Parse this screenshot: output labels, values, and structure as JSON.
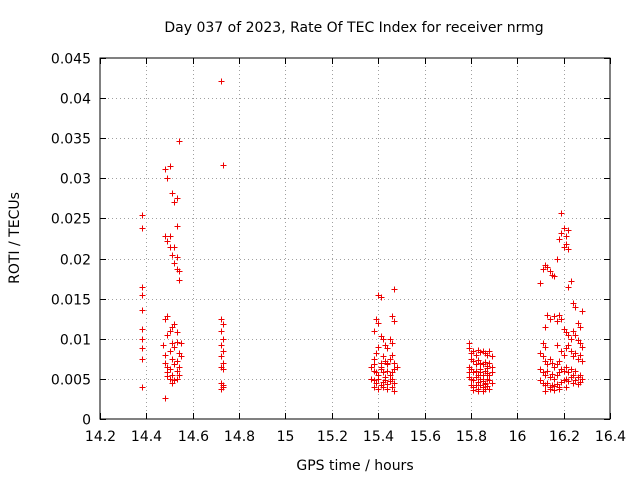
{
  "chart_data": {
    "type": "scatter",
    "title": "Day 037 of 2023, Rate Of TEC Index for receiver nrmg",
    "xlabel": "GPS time / hours",
    "ylabel": "ROTI / TECUs",
    "xlim": [
      14.2,
      16.4
    ],
    "ylim": [
      0,
      0.045
    ],
    "x_ticks": [
      14.2,
      14.4,
      14.6,
      14.8,
      15,
      15.2,
      15.4,
      15.6,
      15.8,
      16,
      16.2,
      16.4
    ],
    "x_tick_labels": [
      "14.2",
      "14.4",
      "14.6",
      "14.8",
      "15",
      "15.2",
      "15.4",
      "15.6",
      "15.8",
      "16",
      "16.2",
      "16.4"
    ],
    "y_ticks": [
      0,
      0.005,
      0.01,
      0.015,
      0.02,
      0.025,
      0.03,
      0.035,
      0.04,
      0.045
    ],
    "y_tick_labels": [
      "0",
      "0.005",
      "0.01",
      "0.015",
      "0.02",
      "0.025",
      "0.03",
      "0.035",
      "0.04",
      "0.045"
    ],
    "grid": true,
    "marker": "+",
    "color": "#ee0000",
    "series": [
      {
        "name": "ROTI",
        "points": [
          [
            14.38,
            0.0254
          ],
          [
            14.38,
            0.0238
          ],
          [
            14.38,
            0.0165
          ],
          [
            14.38,
            0.0155
          ],
          [
            14.38,
            0.0136
          ],
          [
            14.38,
            0.0112
          ],
          [
            14.38,
            0.01
          ],
          [
            14.38,
            0.0088
          ],
          [
            14.38,
            0.0075
          ],
          [
            14.38,
            0.004
          ],
          [
            14.48,
            0.0312
          ],
          [
            14.49,
            0.03
          ],
          [
            14.5,
            0.0315
          ],
          [
            14.51,
            0.0282
          ],
          [
            14.52,
            0.027
          ],
          [
            14.53,
            0.0275
          ],
          [
            14.53,
            0.024
          ],
          [
            14.54,
            0.0346
          ],
          [
            14.48,
            0.0228
          ],
          [
            14.49,
            0.0222
          ],
          [
            14.5,
            0.0215
          ],
          [
            14.51,
            0.0205
          ],
          [
            14.52,
            0.0215
          ],
          [
            14.53,
            0.0202
          ],
          [
            14.53,
            0.0187
          ],
          [
            14.54,
            0.0185
          ],
          [
            14.54,
            0.0173
          ],
          [
            14.5,
            0.0228
          ],
          [
            14.52,
            0.0195
          ],
          [
            14.48,
            0.0125
          ],
          [
            14.49,
            0.0128
          ],
          [
            14.5,
            0.011
          ],
          [
            14.51,
            0.0115
          ],
          [
            14.52,
            0.0118
          ],
          [
            14.53,
            0.0108
          ],
          [
            14.49,
            0.0105
          ],
          [
            14.47,
            0.0092
          ],
          [
            14.48,
            0.008
          ],
          [
            14.48,
            0.007
          ],
          [
            14.49,
            0.0065
          ],
          [
            14.49,
            0.0058
          ],
          [
            14.5,
            0.0062
          ],
          [
            14.5,
            0.0085
          ],
          [
            14.51,
            0.0075
          ],
          [
            14.51,
            0.0055
          ],
          [
            14.52,
            0.0068
          ],
          [
            14.52,
            0.009
          ],
          [
            14.53,
            0.0072
          ],
          [
            14.53,
            0.006
          ],
          [
            14.54,
            0.0082
          ],
          [
            14.54,
            0.0065
          ],
          [
            14.55,
            0.0095
          ],
          [
            14.55,
            0.0078
          ],
          [
            14.5,
            0.005
          ],
          [
            14.51,
            0.0045
          ],
          [
            14.52,
            0.0048
          ],
          [
            14.53,
            0.005
          ],
          [
            14.49,
            0.0053
          ],
          [
            14.54,
            0.0055
          ],
          [
            14.48,
            0.0026
          ],
          [
            14.53,
            0.0096
          ],
          [
            14.51,
            0.0095
          ],
          [
            14.72,
            0.0421
          ],
          [
            14.73,
            0.0316
          ],
          [
            14.72,
            0.0125
          ],
          [
            14.73,
            0.0118
          ],
          [
            14.72,
            0.011
          ],
          [
            14.73,
            0.01
          ],
          [
            14.72,
            0.0092
          ],
          [
            14.73,
            0.0085
          ],
          [
            14.72,
            0.0078
          ],
          [
            14.73,
            0.007
          ],
          [
            14.72,
            0.0065
          ],
          [
            14.73,
            0.0062
          ],
          [
            14.72,
            0.0045
          ],
          [
            14.73,
            0.004
          ],
          [
            14.72,
            0.0038
          ],
          [
            14.73,
            0.0043
          ],
          [
            15.4,
            0.0155
          ],
          [
            15.41,
            0.0152
          ],
          [
            15.39,
            0.0125
          ],
          [
            15.4,
            0.012
          ],
          [
            15.46,
            0.0128
          ],
          [
            15.47,
            0.0122
          ],
          [
            15.47,
            0.0162
          ],
          [
            15.45,
            0.01
          ],
          [
            15.46,
            0.0095
          ],
          [
            15.38,
            0.011
          ],
          [
            15.41,
            0.0103
          ],
          [
            15.42,
            0.01
          ],
          [
            15.43,
            0.0092
          ],
          [
            15.44,
            0.0088
          ],
          [
            15.4,
            0.009
          ],
          [
            15.38,
            0.0075
          ],
          [
            15.39,
            0.0082
          ],
          [
            15.41,
            0.007
          ],
          [
            15.42,
            0.0078
          ],
          [
            15.43,
            0.0072
          ],
          [
            15.44,
            0.0068
          ],
          [
            15.45,
            0.0075
          ],
          [
            15.46,
            0.008
          ],
          [
            15.47,
            0.007
          ],
          [
            15.37,
            0.0065
          ],
          [
            15.38,
            0.006
          ],
          [
            15.39,
            0.0058
          ],
          [
            15.4,
            0.0055
          ],
          [
            15.41,
            0.0062
          ],
          [
            15.42,
            0.0058
          ],
          [
            15.43,
            0.0052
          ],
          [
            15.44,
            0.006
          ],
          [
            15.45,
            0.0055
          ],
          [
            15.46,
            0.0058
          ],
          [
            15.47,
            0.0062
          ],
          [
            15.48,
            0.0065
          ],
          [
            15.37,
            0.005
          ],
          [
            15.38,
            0.0048
          ],
          [
            15.39,
            0.0045
          ],
          [
            15.4,
            0.005
          ],
          [
            15.41,
            0.0042
          ],
          [
            15.42,
            0.0046
          ],
          [
            15.43,
            0.0048
          ],
          [
            15.44,
            0.0044
          ],
          [
            15.45,
            0.0047
          ],
          [
            15.46,
            0.005
          ],
          [
            15.47,
            0.0045
          ],
          [
            15.38,
            0.004
          ],
          [
            15.4,
            0.0038
          ],
          [
            15.42,
            0.004
          ],
          [
            15.44,
            0.0038
          ],
          [
            15.46,
            0.004
          ],
          [
            15.47,
            0.0035
          ],
          [
            15.38,
            0.0068
          ],
          [
            15.41,
            0.0065
          ],
          [
            15.44,
            0.007
          ],
          [
            15.79,
            0.0095
          ],
          [
            15.79,
            0.0088
          ],
          [
            15.8,
            0.0082
          ],
          [
            15.81,
            0.0085
          ],
          [
            15.82,
            0.008
          ],
          [
            15.83,
            0.0086
          ],
          [
            15.84,
            0.0083
          ],
          [
            15.85,
            0.0085
          ],
          [
            15.86,
            0.0082
          ],
          [
            15.87,
            0.008
          ],
          [
            15.88,
            0.0085
          ],
          [
            15.89,
            0.0078
          ],
          [
            15.8,
            0.0075
          ],
          [
            15.81,
            0.0072
          ],
          [
            15.82,
            0.0068
          ],
          [
            15.83,
            0.0073
          ],
          [
            15.84,
            0.007
          ],
          [
            15.85,
            0.0068
          ],
          [
            15.86,
            0.0071
          ],
          [
            15.87,
            0.0066
          ],
          [
            15.88,
            0.007
          ],
          [
            15.89,
            0.0065
          ],
          [
            15.79,
            0.0065
          ],
          [
            15.8,
            0.0062
          ],
          [
            15.81,
            0.0058
          ],
          [
            15.82,
            0.006
          ],
          [
            15.83,
            0.0055
          ],
          [
            15.84,
            0.0058
          ],
          [
            15.85,
            0.0055
          ],
          [
            15.86,
            0.006
          ],
          [
            15.87,
            0.0057
          ],
          [
            15.88,
            0.0055
          ],
          [
            15.89,
            0.0058
          ],
          [
            15.79,
            0.0052
          ],
          [
            15.8,
            0.005
          ],
          [
            15.81,
            0.0048
          ],
          [
            15.82,
            0.0052
          ],
          [
            15.83,
            0.0046
          ],
          [
            15.84,
            0.005
          ],
          [
            15.85,
            0.0047
          ],
          [
            15.86,
            0.0045
          ],
          [
            15.87,
            0.005
          ],
          [
            15.88,
            0.0048
          ],
          [
            15.89,
            0.0045
          ],
          [
            15.8,
            0.0042
          ],
          [
            15.81,
            0.004
          ],
          [
            15.82,
            0.0043
          ],
          [
            15.83,
            0.0038
          ],
          [
            15.84,
            0.0042
          ],
          [
            15.85,
            0.004
          ],
          [
            15.86,
            0.0044
          ],
          [
            15.87,
            0.0041
          ],
          [
            15.88,
            0.0038
          ],
          [
            15.81,
            0.0036
          ],
          [
            15.83,
            0.0035
          ],
          [
            15.85,
            0.0035
          ],
          [
            15.86,
            0.0037
          ],
          [
            15.79,
            0.0058
          ],
          [
            15.84,
            0.0062
          ],
          [
            15.87,
            0.0063
          ],
          [
            16.19,
            0.0257
          ],
          [
            16.2,
            0.0238
          ],
          [
            16.19,
            0.0232
          ],
          [
            16.21,
            0.0228
          ],
          [
            16.22,
            0.0235
          ],
          [
            16.18,
            0.0225
          ],
          [
            16.2,
            0.0215
          ],
          [
            16.21,
            0.0218
          ],
          [
            16.22,
            0.0212
          ],
          [
            16.11,
            0.0187
          ],
          [
            16.12,
            0.0192
          ],
          [
            16.13,
            0.019
          ],
          [
            16.14,
            0.0185
          ],
          [
            16.15,
            0.018
          ],
          [
            16.16,
            0.0178
          ],
          [
            16.17,
            0.02
          ],
          [
            16.23,
            0.0172
          ],
          [
            16.22,
            0.0165
          ],
          [
            16.1,
            0.017
          ],
          [
            16.24,
            0.0145
          ],
          [
            16.25,
            0.014
          ],
          [
            16.26,
            0.012
          ],
          [
            16.27,
            0.0115
          ],
          [
            16.28,
            0.0135
          ],
          [
            16.13,
            0.013
          ],
          [
            16.14,
            0.0125
          ],
          [
            16.16,
            0.0128
          ],
          [
            16.17,
            0.0122
          ],
          [
            16.18,
            0.013
          ],
          [
            16.19,
            0.0125
          ],
          [
            16.12,
            0.0115
          ],
          [
            16.2,
            0.0112
          ],
          [
            16.21,
            0.0108
          ],
          [
            16.22,
            0.0105
          ],
          [
            16.23,
            0.01
          ],
          [
            16.24,
            0.011
          ],
          [
            16.25,
            0.0105
          ],
          [
            16.26,
            0.0098
          ],
          [
            16.27,
            0.0095
          ],
          [
            16.28,
            0.009
          ],
          [
            16.1,
            0.0082
          ],
          [
            16.11,
            0.0078
          ],
          [
            16.12,
            0.0072
          ],
          [
            16.13,
            0.0068
          ],
          [
            16.14,
            0.0075
          ],
          [
            16.15,
            0.007
          ],
          [
            16.16,
            0.0065
          ],
          [
            16.17,
            0.0068
          ],
          [
            16.18,
            0.0072
          ],
          [
            16.19,
            0.0085
          ],
          [
            16.2,
            0.008
          ],
          [
            16.21,
            0.0088
          ],
          [
            16.22,
            0.0092
          ],
          [
            16.23,
            0.0085
          ],
          [
            16.24,
            0.0078
          ],
          [
            16.25,
            0.0082
          ],
          [
            16.26,
            0.0075
          ],
          [
            16.27,
            0.008
          ],
          [
            16.28,
            0.0072
          ],
          [
            16.1,
            0.0062
          ],
          [
            16.11,
            0.0058
          ],
          [
            16.12,
            0.0055
          ],
          [
            16.13,
            0.006
          ],
          [
            16.14,
            0.0052
          ],
          [
            16.15,
            0.0056
          ],
          [
            16.16,
            0.005
          ],
          [
            16.17,
            0.0055
          ],
          [
            16.18,
            0.0058
          ],
          [
            16.19,
            0.0062
          ],
          [
            16.2,
            0.006
          ],
          [
            16.21,
            0.0065
          ],
          [
            16.22,
            0.0058
          ],
          [
            16.23,
            0.0062
          ],
          [
            16.24,
            0.0055
          ],
          [
            16.25,
            0.006
          ],
          [
            16.26,
            0.0052
          ],
          [
            16.27,
            0.0055
          ],
          [
            16.28,
            0.005
          ],
          [
            16.1,
            0.0048
          ],
          [
            16.11,
            0.0045
          ],
          [
            16.12,
            0.0042
          ],
          [
            16.13,
            0.0045
          ],
          [
            16.14,
            0.004
          ],
          [
            16.15,
            0.0043
          ],
          [
            16.16,
            0.0041
          ],
          [
            16.17,
            0.0044
          ],
          [
            16.18,
            0.004
          ],
          [
            16.19,
            0.0046
          ],
          [
            16.2,
            0.0048
          ],
          [
            16.21,
            0.005
          ],
          [
            16.22,
            0.0047
          ],
          [
            16.23,
            0.0052
          ],
          [
            16.24,
            0.0045
          ],
          [
            16.25,
            0.0048
          ],
          [
            16.26,
            0.0044
          ],
          [
            16.27,
            0.0046
          ],
          [
            16.12,
            0.0035
          ],
          [
            16.14,
            0.0038
          ],
          [
            16.16,
            0.0036
          ],
          [
            16.18,
            0.0037
          ],
          [
            16.21,
            0.004
          ],
          [
            16.11,
            0.0095
          ],
          [
            16.12,
            0.009
          ],
          [
            16.17,
            0.0092
          ]
        ]
      }
    ]
  }
}
